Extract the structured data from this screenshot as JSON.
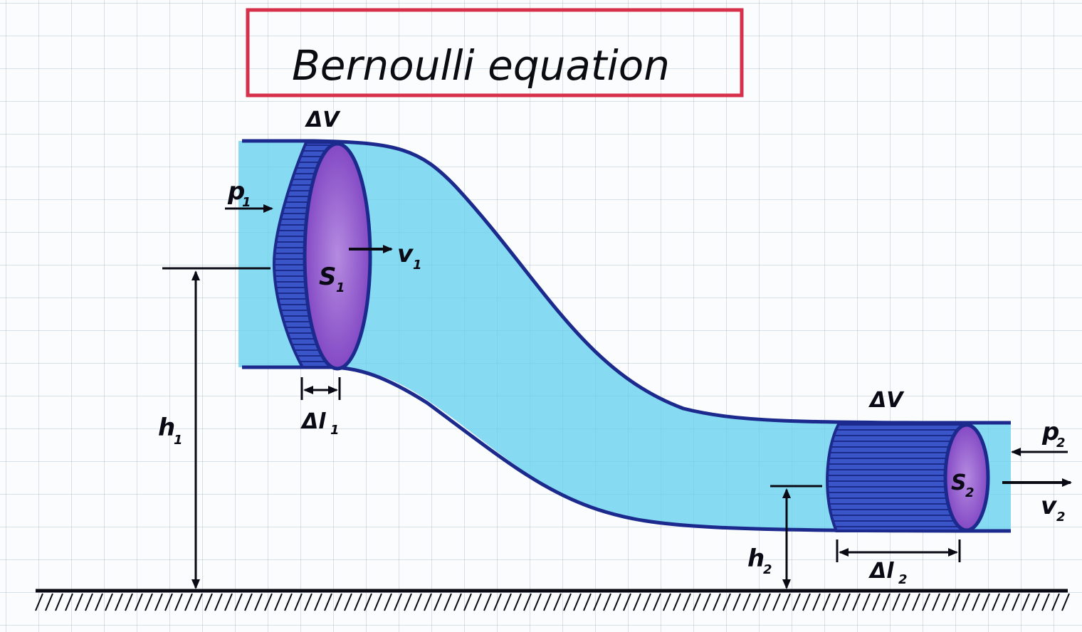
{
  "title": "Bernoulli equation",
  "labels": {
    "dv_left": "ΔV",
    "dv_right": "ΔV",
    "p1": "p",
    "p1_sub": "1",
    "v1": "v",
    "v1_sub": "1",
    "s1": "S",
    "s1_sub": "1",
    "h1": "h",
    "h1_sub": "1",
    "dl1": "Δl",
    "dl1_sub": "1",
    "p2": "p",
    "p2_sub": "2",
    "v2": "v",
    "v2_sub": "2",
    "s2": "S",
    "s2_sub": "2",
    "h2": "h",
    "h2_sub": "2",
    "dl2": "Δl",
    "dl2_sub": "2"
  },
  "colors": {
    "title_border": "#d6304a",
    "pipe_outline": "#1b2a8c",
    "fluid": "#4fc6e8",
    "volume_fill": "#3a55c8",
    "section_fill": "#8a4bc8",
    "ink": "#0a0a14"
  }
}
